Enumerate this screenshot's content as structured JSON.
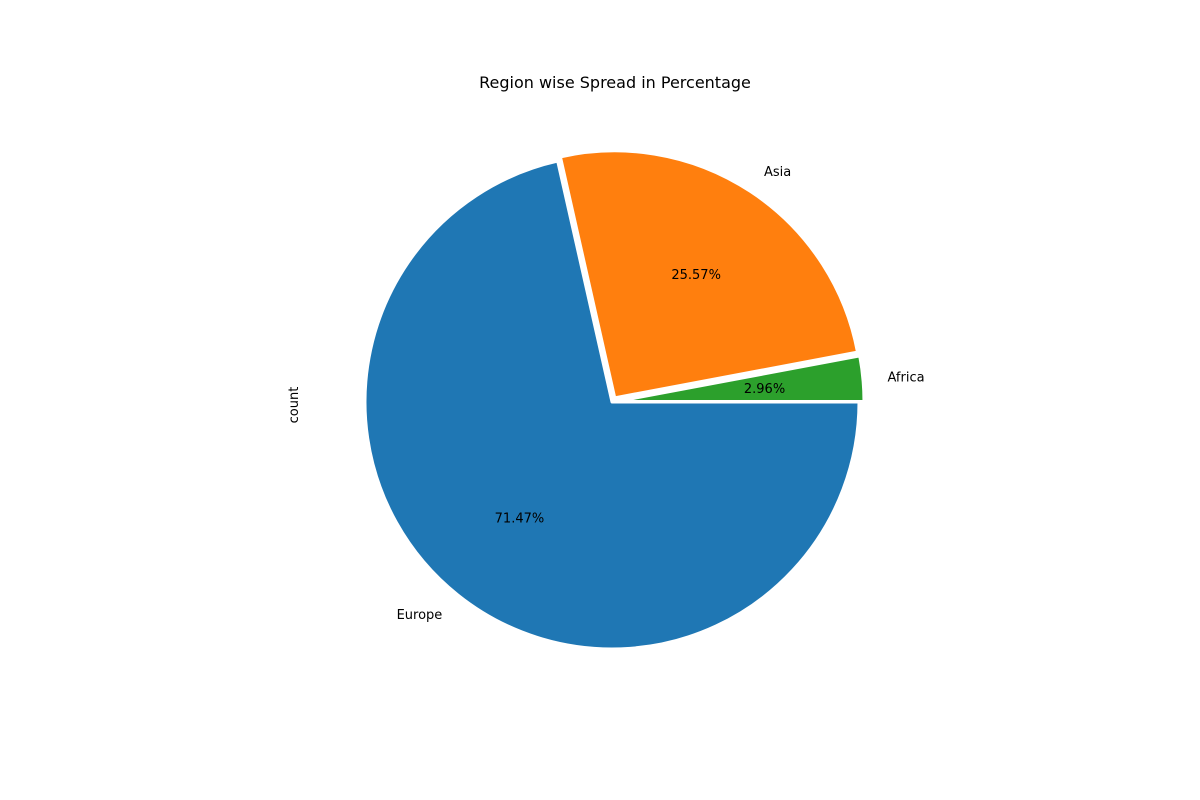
{
  "chart_data": {
    "type": "pie",
    "title": "Region wise Spread in Percentage",
    "ylabel": "count",
    "slices": [
      {
        "label": "Europe",
        "percent": 71.47,
        "pct_label": "71.47%",
        "color": "#1f77b4",
        "exploded": false
      },
      {
        "label": "Asia",
        "percent": 25.57,
        "pct_label": "25.57%",
        "color": "#ff7f0e",
        "exploded": true
      },
      {
        "label": "Africa",
        "percent": 2.96,
        "pct_label": "2.96%",
        "color": "#2ca02c",
        "exploded": true
      }
    ],
    "start_angle_deg": 0,
    "direction": "clockwise",
    "wedge_edgecolor": "#ffffff"
  }
}
